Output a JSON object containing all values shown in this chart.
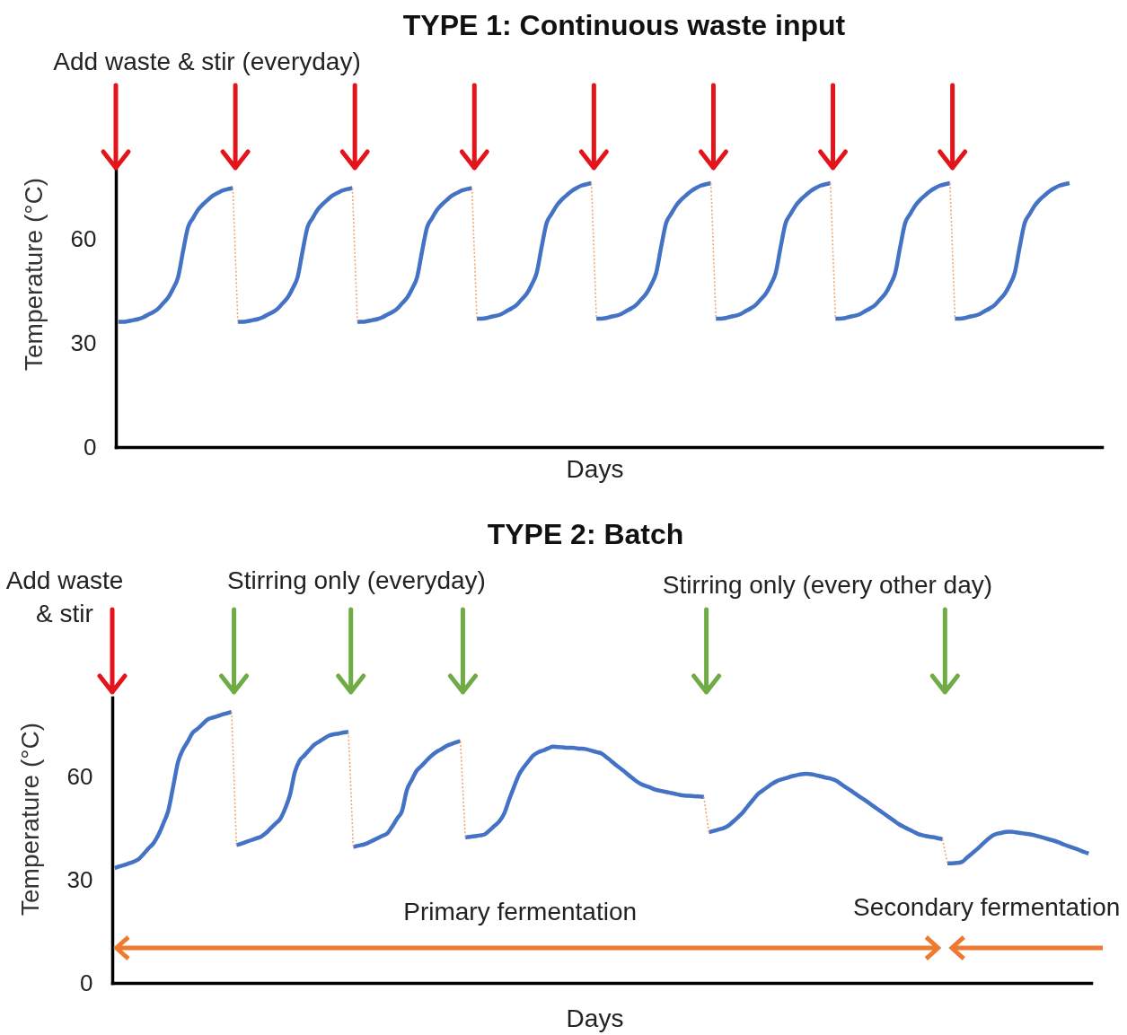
{
  "chart_data": [
    {
      "type": "line",
      "title": "TYPE 1: Continuous waste input",
      "xlabel": "Days",
      "ylabel": "Temperature (°C)",
      "annotations": [
        "Add waste & stir (everyday)"
      ],
      "tick_labels": "y",
      "ylim": [
        0,
        80
      ],
      "yticks": [
        0,
        30,
        60
      ],
      "categories": [
        null,
        null,
        null,
        null,
        null,
        null,
        null,
        null,
        null,
        null,
        null,
        null,
        null,
        null,
        null,
        null,
        null,
        null,
        null,
        null,
        null,
        null,
        null,
        null,
        null,
        null,
        null,
        null,
        null,
        null,
        null,
        null,
        null,
        null,
        null,
        null,
        null,
        null,
        null,
        null,
        null,
        null,
        null,
        null,
        null,
        null,
        null,
        null,
        null,
        null,
        null,
        null,
        null,
        null,
        null,
        null,
        null,
        null,
        null,
        null,
        null,
        null,
        null,
        null,
        null,
        null,
        null,
        null,
        null,
        null,
        null,
        null,
        null,
        null,
        null,
        null,
        null,
        null,
        null,
        null,
        null,
        null,
        null,
        null,
        null,
        null,
        null,
        null,
        null,
        null,
        null,
        null,
        null,
        null,
        null,
        null,
        null,
        null,
        null,
        null,
        null,
        null,
        null,
        null,
        null,
        null,
        null,
        null,
        null,
        null,
        null,
        null,
        null,
        null,
        null,
        null,
        null,
        null,
        null,
        null,
        null,
        null,
        null,
        null,
        null,
        null,
        null,
        null,
        null,
        null,
        null,
        null,
        null,
        null,
        null,
        null,
        null,
        null,
        null,
        null,
        null,
        null,
        null,
        null,
        null,
        null,
        null,
        null,
        null,
        null,
        null,
        null,
        null,
        null,
        null,
        null,
        null,
        null,
        null,
        null,
        null,
        null,
        null,
        null,
        null,
        null,
        null,
        null,
        null,
        null,
        null,
        null,
        null,
        null,
        null,
        null,
        null,
        null,
        null,
        null,
        null,
        null,
        null,
        null,
        null,
        null,
        null,
        null,
        null,
        null,
        null,
        null,
        null,
        null,
        null,
        null,
        null,
        null
      ],
      "series": [
        {
          "color": "#4472c4",
          "values": [
            36.1,
            36.1,
            36.3,
            36.6,
            36.9,
            37.4,
            38.2,
            38.9,
            39.9,
            41.5,
            43.1,
            45.7,
            49.0,
            56.5,
            63.4,
            66.0,
            68.4,
            70.0,
            71.3,
            72.5,
            73.3,
            74.0,
            74.4,
            74.7,
            null,
            null,
            null,
            null,
            null,
            null,
            null,
            null,
            null,
            null,
            null,
            null,
            null,
            null,
            null,
            null,
            null,
            null,
            null,
            null,
            null,
            null,
            null,
            null,
            36.1,
            36.1,
            36.3,
            36.6,
            36.9,
            37.4,
            38.2,
            38.9,
            39.9,
            41.5,
            43.1,
            45.7,
            49.0,
            56.5,
            63.4,
            66.0,
            68.4,
            70.0,
            71.3,
            72.5,
            73.3,
            74.0,
            74.4,
            74.7,
            null,
            null,
            null,
            null,
            null,
            null,
            null,
            null,
            null,
            null,
            null,
            null,
            null,
            null,
            null,
            null,
            null,
            null,
            null,
            null,
            null,
            null,
            null,
            null,
            37.0,
            37.0,
            37.2,
            37.6,
            37.9,
            38.4,
            39.2,
            40.0,
            41.0,
            42.6,
            44.2,
            46.8,
            50.2,
            57.7,
            64.6,
            67.2,
            69.6,
            71.3,
            72.6,
            73.8,
            74.7,
            75.4,
            75.8,
            76.1,
            null,
            null,
            null,
            null,
            null,
            null,
            null,
            null,
            null,
            null,
            null,
            null,
            null,
            null,
            null,
            null,
            null,
            null,
            null,
            null,
            null,
            null,
            null,
            null,
            37.0,
            37.0,
            37.2,
            37.6,
            37.9,
            38.4,
            39.2,
            40.0,
            41.0,
            42.6,
            44.2,
            46.8,
            50.2,
            57.7,
            64.6,
            67.2,
            69.6,
            71.3,
            72.6,
            73.8,
            74.7,
            75.4,
            75.8,
            76.1,
            null,
            null,
            null,
            null,
            null,
            null,
            null,
            null,
            null,
            null,
            null,
            null,
            null,
            null,
            null,
            null,
            null,
            null,
            null,
            null,
            null,
            null,
            null,
            null,
            null,
            null,
            null,
            null,
            null,
            null
          ]
        },
        {
          "color": "#4472c4",
          "values": [
            null,
            null,
            null,
            null,
            null,
            null,
            null,
            null,
            null,
            null,
            null,
            null,
            null,
            null,
            null,
            null,
            null,
            null,
            null,
            null,
            null,
            null,
            null,
            null,
            36.1,
            36.1,
            36.3,
            36.6,
            36.9,
            37.4,
            38.2,
            38.9,
            39.9,
            41.5,
            43.1,
            45.7,
            49.0,
            56.5,
            63.4,
            66.0,
            68.4,
            70.0,
            71.3,
            72.5,
            73.3,
            74.0,
            74.4,
            74.7,
            null,
            null,
            null,
            null,
            null,
            null,
            null,
            null,
            null,
            null,
            null,
            null,
            null,
            null,
            null,
            null,
            null,
            null,
            null,
            null,
            null,
            null,
            null,
            null,
            37.0,
            37.0,
            37.2,
            37.6,
            37.9,
            38.4,
            39.2,
            40.0,
            41.0,
            42.6,
            44.2,
            46.8,
            50.2,
            57.7,
            64.6,
            67.2,
            69.6,
            71.3,
            72.6,
            73.8,
            74.7,
            75.4,
            75.8,
            76.1,
            null,
            null,
            null,
            null,
            null,
            null,
            null,
            null,
            null,
            null,
            null,
            null,
            null,
            null,
            null,
            null,
            null,
            null,
            null,
            null,
            null,
            null,
            null,
            null,
            37.0,
            37.0,
            37.2,
            37.6,
            37.9,
            38.4,
            39.2,
            40.0,
            41.0,
            42.6,
            44.2,
            46.8,
            50.2,
            57.7,
            64.6,
            67.2,
            69.6,
            71.3,
            72.6,
            73.8,
            74.7,
            75.4,
            75.8,
            76.1,
            null,
            null,
            null,
            null,
            null,
            null,
            null,
            null,
            null,
            null,
            null,
            null,
            null,
            null,
            null,
            null,
            null,
            null,
            null,
            null,
            null,
            null,
            null,
            null,
            37.0,
            37.0,
            37.2,
            37.6,
            37.9,
            38.4,
            39.2,
            40.0,
            41.0,
            42.6,
            44.2,
            46.8,
            50.2,
            57.7,
            64.6,
            67.2,
            69.6,
            71.3,
            72.6,
            73.8,
            74.7,
            75.4,
            75.8,
            76.1,
            null,
            null,
            null,
            null,
            null,
            null
          ]
        },
        {
          "color": "#f3a66f",
          "line_style": "dotted",
          "values": [
            null,
            null,
            null,
            null,
            null,
            null,
            null,
            null,
            null,
            null,
            null,
            null,
            null,
            null,
            null,
            null,
            null,
            null,
            null,
            null,
            null,
            null,
            null,
            74.7,
            36.1,
            null,
            null,
            null,
            null,
            null,
            null,
            null,
            null,
            null,
            null,
            null,
            null,
            null,
            null,
            null,
            null,
            null,
            null,
            null,
            null,
            null,
            null,
            74.7,
            36.1,
            null,
            null,
            null,
            null,
            null,
            null,
            null,
            null,
            null,
            null,
            null,
            null,
            null,
            null,
            null,
            null,
            null,
            null,
            null,
            null,
            null,
            null,
            74.7,
            37.0,
            null,
            null,
            null,
            null,
            null,
            null,
            null,
            null,
            null,
            null,
            null,
            null,
            null,
            null,
            null,
            null,
            null,
            null,
            null,
            null,
            null,
            null,
            76.1,
            37.0,
            null,
            null,
            null,
            null,
            null,
            null,
            null,
            null,
            null,
            null,
            null,
            null,
            null,
            null,
            null,
            null,
            null,
            null,
            null,
            null,
            null,
            null,
            76.1,
            37.0,
            null,
            null,
            null,
            null,
            null,
            null,
            null,
            null,
            null,
            null,
            null,
            null,
            null,
            null,
            null,
            null,
            null,
            null,
            null,
            null,
            null,
            null,
            76.1,
            37.0,
            null,
            null,
            null,
            null,
            null,
            null,
            null,
            null,
            null,
            null,
            null,
            null,
            null,
            null,
            null,
            null,
            null,
            null,
            null,
            null,
            null,
            null,
            76.1,
            37.0,
            null,
            null,
            null,
            null,
            null,
            null,
            null,
            null,
            null,
            null,
            null,
            null,
            null,
            null,
            null,
            null,
            null,
            null,
            null,
            null,
            null,
            null,
            null,
            null,
            null,
            null,
            null,
            null,
            null
          ]
        }
      ]
    },
    {
      "type": "line",
      "title": "TYPE 2: Batch",
      "xlabel": "Days",
      "ylabel": "Temperature (°C)",
      "annotations": [
        "Add waste\n& stir",
        "Stirring only (everyday)",
        "Stirring only (every other day)",
        "Primary fermentation",
        "Secondary fermentation"
      ],
      "tick_labels": "y",
      "ylim": [
        0,
        83
      ],
      "yticks": [
        0,
        30,
        60
      ],
      "categories": [
        null,
        null,
        null,
        null,
        null,
        null,
        null,
        null,
        null,
        null,
        null,
        null,
        null,
        null,
        null,
        null,
        null,
        null,
        null,
        null,
        null,
        null,
        null,
        null,
        null,
        null,
        null,
        null,
        null,
        null,
        null,
        null,
        null,
        null,
        null,
        null,
        null,
        null,
        null,
        null,
        null,
        null,
        null,
        null,
        null,
        null,
        null,
        null,
        null,
        null,
        null,
        null,
        null,
        null,
        null,
        null,
        null,
        null,
        null,
        null,
        null,
        null,
        null,
        null,
        null,
        null,
        null,
        null,
        null,
        null,
        null,
        null,
        null,
        null,
        null,
        null,
        null,
        null,
        null,
        null,
        null,
        null,
        null,
        null,
        null,
        null,
        null,
        null,
        null,
        null,
        null,
        null,
        null,
        null,
        null,
        null,
        null,
        null,
        null,
        null,
        null,
        null,
        null,
        null,
        null,
        null,
        null,
        null,
        null,
        null,
        null,
        null,
        null,
        null,
        null,
        null,
        null,
        null,
        null,
        null,
        null,
        null,
        null,
        null,
        null,
        null,
        null,
        null,
        null,
        null,
        null,
        null,
        null,
        null,
        null,
        null,
        null,
        null,
        null,
        null,
        null,
        null,
        null,
        null,
        null,
        null,
        null,
        null,
        null,
        null,
        null,
        null,
        null,
        null,
        null,
        null,
        null,
        null,
        null,
        null,
        null,
        null,
        null,
        null,
        null,
        null,
        null,
        null,
        null,
        null,
        null,
        null,
        null,
        null,
        null,
        null,
        null,
        null,
        null,
        null,
        null,
        null,
        null,
        null,
        null,
        null,
        null,
        null,
        null,
        null,
        null,
        null,
        null,
        null,
        null,
        null,
        null,
        null,
        null,
        null,
        null
      ],
      "series": [
        {
          "color": "#4472c4",
          "values": [
            33.4,
            33.9,
            34.3,
            34.8,
            35.3,
            36.1,
            37.6,
            39.2,
            40.7,
            43.1,
            46.4,
            50.1,
            57.0,
            64.2,
            67.8,
            70.2,
            72.7,
            73.9,
            75.2,
            76.5,
            77.1,
            77.5,
            78.0,
            78.4,
            78.8,
            null,
            null,
            null,
            null,
            null,
            null,
            null,
            null,
            null,
            null,
            null,
            null,
            null,
            null,
            null,
            null,
            null,
            null,
            null,
            null,
            null,
            null,
            null,
            null,
            39.5,
            39.9,
            40.2,
            40.7,
            41.4,
            42.1,
            42.8,
            43.5,
            45.5,
            47.8,
            50.0,
            56.1,
            59.0,
            61.7,
            63.1,
            64.6,
            66.0,
            67.1,
            67.9,
            68.8,
            69.4,
            69.9,
            70.3,
            null,
            null,
            null,
            null,
            null,
            null,
            null,
            null,
            null,
            null,
            null,
            null,
            null,
            null,
            null,
            null,
            null,
            null,
            null,
            null,
            null,
            null,
            null,
            null,
            null,
            null,
            null,
            null,
            null,
            null,
            null,
            null,
            null,
            null,
            null,
            null,
            null,
            null,
            null,
            null,
            null,
            null,
            null,
            null,
            null,
            null,
            null,
            null,
            null,
            null,
            43.8,
            44.2,
            44.6,
            45.0,
            45.7,
            46.9,
            48.2,
            49.6,
            51.4,
            53.1,
            54.8,
            55.9,
            56.9,
            57.9,
            58.7,
            59.2,
            59.6,
            60.1,
            60.4,
            60.7,
            60.8,
            60.7,
            60.4,
            60.1,
            59.7,
            59.4,
            58.9,
            58.0,
            57.0,
            56.1,
            55.1,
            54.1,
            53.2,
            52.2,
            51.2,
            50.2,
            49.2,
            48.2,
            47.2,
            46.2,
            45.4,
            44.7,
            44.0,
            43.3,
            42.9,
            42.6,
            42.4,
            42.1,
            41.8,
            null,
            null,
            null,
            null,
            null,
            null,
            null,
            null,
            null,
            null,
            null,
            null,
            null,
            null,
            null,
            null,
            null,
            null,
            null,
            null,
            null,
            null,
            null,
            null,
            null,
            null,
            null,
            null,
            null,
            null
          ]
        },
        {
          "color": "#4472c4",
          "values": [
            null,
            null,
            null,
            null,
            null,
            null,
            null,
            null,
            null,
            null,
            null,
            null,
            null,
            null,
            null,
            null,
            null,
            null,
            null,
            null,
            null,
            null,
            null,
            null,
            null,
            40.1,
            40.5,
            41.0,
            41.5,
            42.0,
            42.5,
            43.5,
            44.9,
            46.3,
            47.7,
            50.7,
            54.7,
            61.3,
            64.7,
            66.2,
            67.8,
            69.3,
            70.2,
            71.1,
            71.9,
            72.3,
            72.5,
            72.8,
            73.0,
            null,
            null,
            null,
            null,
            null,
            null,
            null,
            null,
            null,
            null,
            null,
            null,
            null,
            null,
            null,
            null,
            null,
            null,
            null,
            null,
            null,
            null,
            null,
            42.3,
            42.5,
            42.7,
            42.9,
            43.2,
            44.4,
            45.7,
            47.0,
            49.3,
            53.3,
            57.0,
            60.5,
            62.7,
            64.5,
            66.2,
            67.1,
            67.6,
            68.2,
            68.7,
            68.6,
            68.5,
            68.4,
            68.4,
            68.2,
            68.1,
            67.9,
            67.5,
            67.1,
            66.7,
            65.6,
            64.5,
            63.3,
            62.2,
            61.1,
            59.9,
            58.8,
            57.9,
            57.3,
            56.8,
            56.2,
            55.9,
            55.6,
            55.3,
            55.0,
            54.7,
            54.5,
            54.4,
            54.3,
            54.2,
            54.1,
            null,
            null,
            null,
            null,
            null,
            null,
            null,
            null,
            null,
            null,
            null,
            null,
            null,
            null,
            null,
            null,
            null,
            null,
            null,
            null,
            null,
            null,
            null,
            null,
            null,
            null,
            null,
            null,
            null,
            null,
            null,
            null,
            null,
            null,
            null,
            null,
            null,
            null,
            null,
            null,
            null,
            null,
            null,
            null,
            null,
            null,
            null,
            null,
            null,
            34.8,
            34.8,
            34.9,
            35.2,
            36.4,
            37.6,
            38.8,
            40.1,
            41.4,
            42.6,
            43.3,
            43.6,
            43.9,
            44.0,
            43.8,
            43.6,
            43.4,
            43.2,
            42.9,
            42.5,
            42.1,
            41.7,
            41.3,
            40.8,
            40.2,
            39.7,
            39.2,
            38.7,
            38.1,
            37.6
          ]
        },
        {
          "color": "#f3a66f",
          "line_style": "dotted",
          "values": [
            null,
            null,
            null,
            null,
            null,
            null,
            null,
            null,
            null,
            null,
            null,
            null,
            null,
            null,
            null,
            null,
            null,
            null,
            null,
            null,
            null,
            null,
            null,
            null,
            78.8,
            40.1,
            null,
            null,
            null,
            null,
            null,
            null,
            null,
            null,
            null,
            null,
            null,
            null,
            null,
            null,
            null,
            null,
            null,
            null,
            null,
            null,
            null,
            null,
            73.0,
            39.5,
            null,
            null,
            null,
            null,
            null,
            null,
            null,
            null,
            null,
            null,
            null,
            null,
            null,
            null,
            null,
            null,
            null,
            null,
            null,
            null,
            null,
            70.3,
            42.3,
            null,
            null,
            null,
            null,
            null,
            null,
            null,
            null,
            null,
            null,
            null,
            null,
            null,
            null,
            null,
            null,
            null,
            null,
            null,
            null,
            null,
            null,
            null,
            null,
            null,
            null,
            null,
            null,
            null,
            null,
            null,
            null,
            null,
            null,
            null,
            null,
            null,
            null,
            null,
            null,
            null,
            null,
            null,
            null,
            null,
            null,
            null,
            null,
            54.1,
            43.8,
            null,
            null,
            null,
            null,
            null,
            null,
            null,
            null,
            null,
            null,
            null,
            null,
            null,
            null,
            null,
            null,
            null,
            null,
            null,
            null,
            null,
            null,
            null,
            null,
            null,
            null,
            null,
            null,
            null,
            null,
            null,
            null,
            null,
            null,
            null,
            null,
            null,
            null,
            null,
            null,
            null,
            null,
            null,
            null,
            null,
            null,
            null,
            41.8,
            34.8,
            null,
            null,
            null,
            null,
            null,
            null,
            null,
            null,
            null,
            null,
            null,
            null,
            null,
            null,
            null,
            null,
            null,
            null,
            null,
            null,
            null,
            null,
            null,
            null,
            null,
            null,
            null,
            null,
            null
          ]
        }
      ]
    }
  ]
}
